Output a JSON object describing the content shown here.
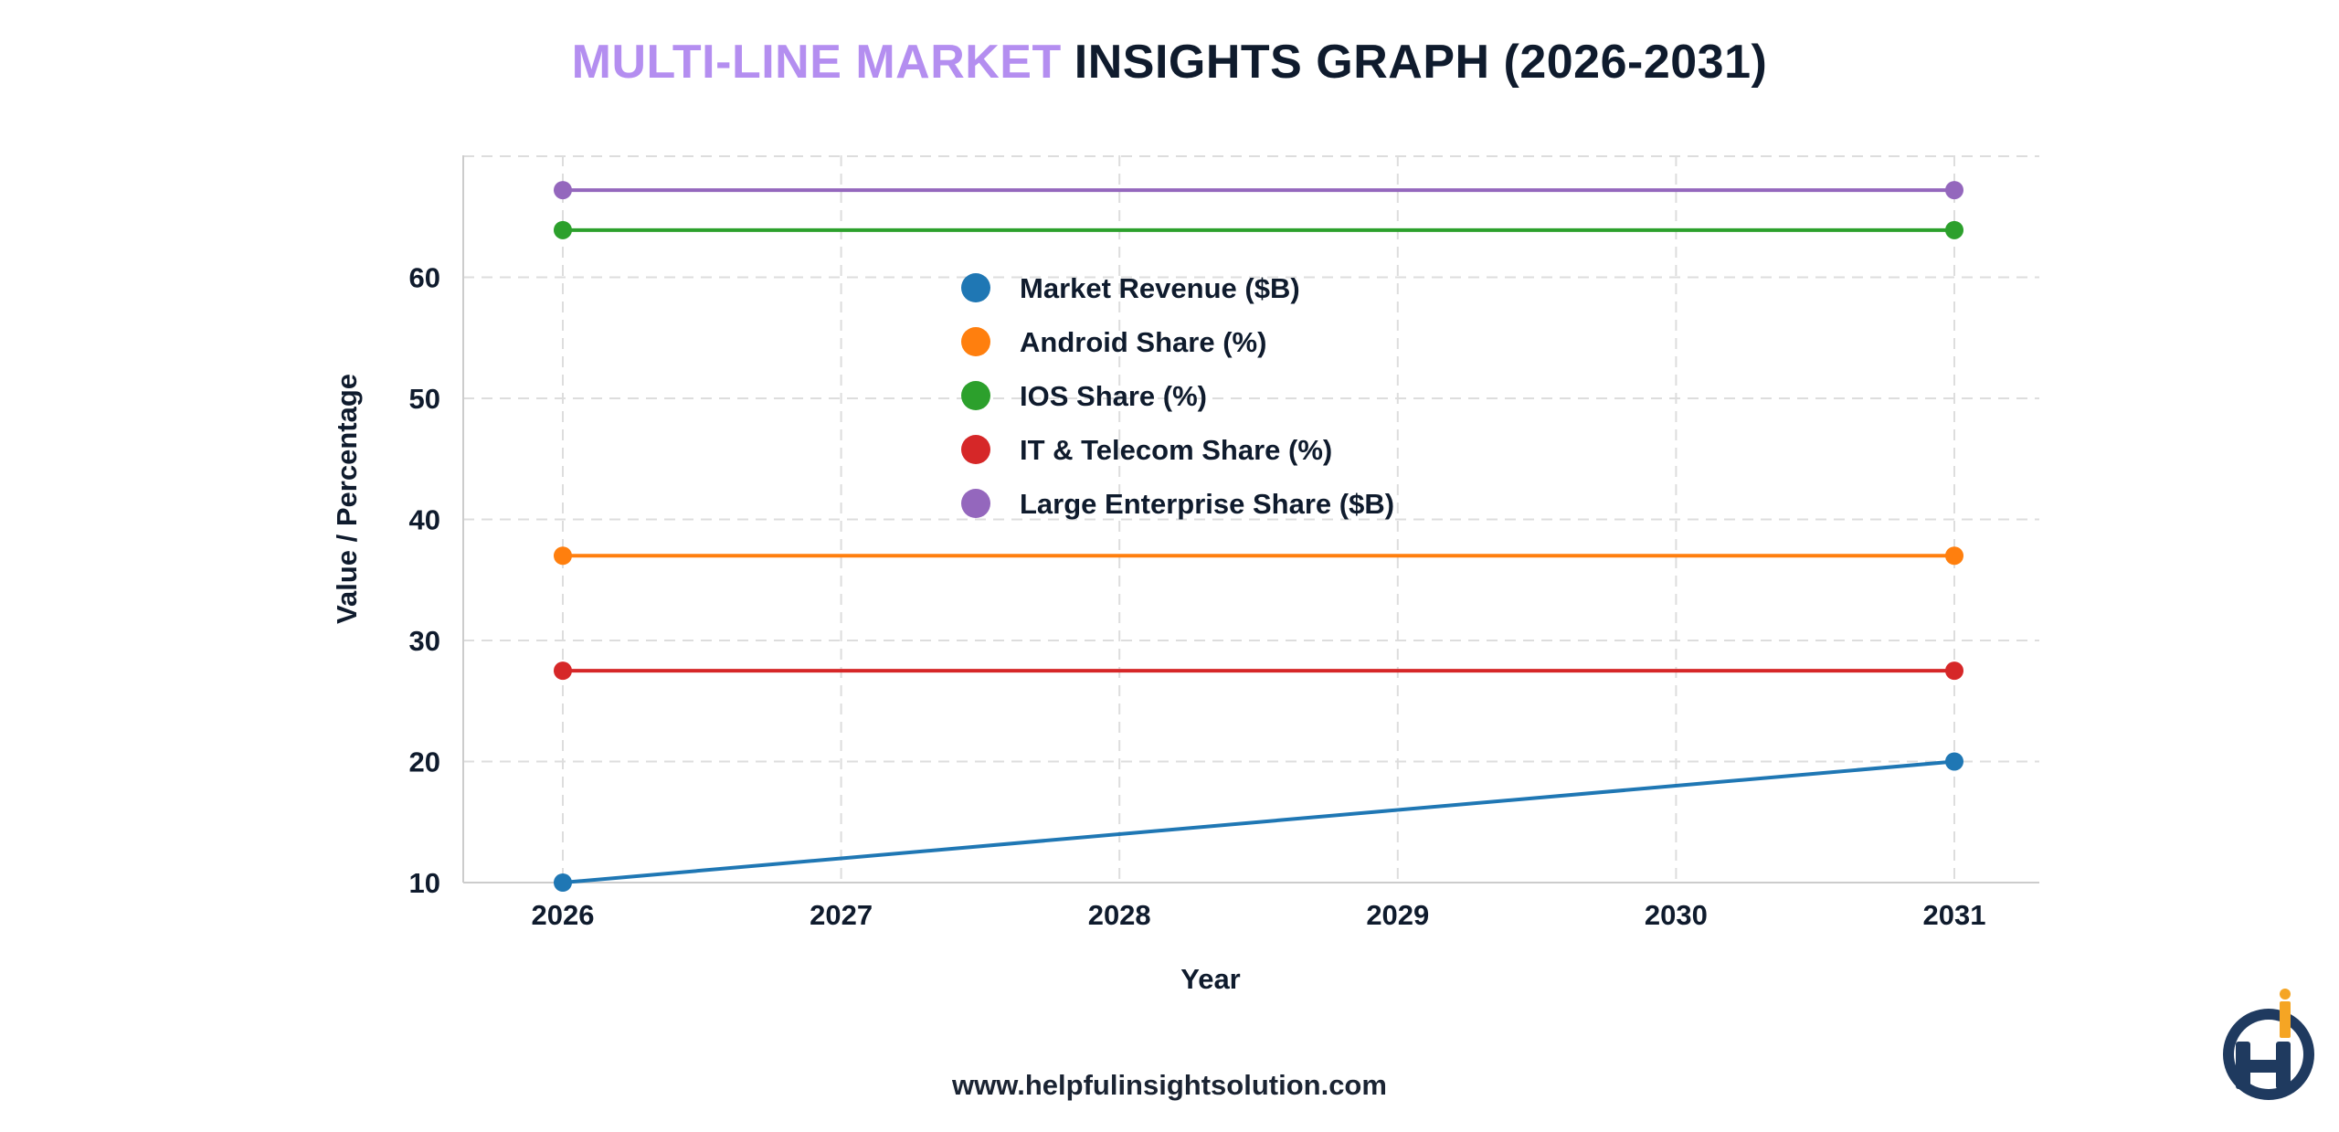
{
  "title": {
    "accent_part": "MULTI-LINE MARKET",
    "main_part": "INSIGHTS GRAPH (2026-2031)",
    "accent_color": "#b48ef0",
    "main_color": "#0f1b2d"
  },
  "footer": {
    "website": "www.helpfulinsightsolution.com"
  },
  "logo": {
    "icon": "hi-logo-icon",
    "colors": [
      "#1f3a5f",
      "#f5a524"
    ]
  },
  "chart_data": {
    "type": "line",
    "title": "MULTI-LINE MARKET INSIGHTS GRAPH (2026-2031)",
    "xlabel": "Year",
    "ylabel": "Value / Percentage",
    "x": [
      2026,
      2027,
      2028,
      2029,
      2030,
      2031
    ],
    "x_tick_labels": [
      "2026",
      "2027",
      "2028",
      "2029",
      "2030",
      "2031"
    ],
    "y_ticks": [
      10,
      20,
      30,
      40,
      50,
      60
    ],
    "ylim": [
      10,
      70
    ],
    "grid": true,
    "legend_position": "upper-center",
    "series": [
      {
        "name": "Market Revenue ($B)",
        "color": "#1f77b4",
        "x": [
          2026,
          2031
        ],
        "values": [
          10,
          20
        ]
      },
      {
        "name": "Android Share (%)",
        "color": "#ff7f0e",
        "x": [
          2026,
          2031
        ],
        "values": [
          37,
          37
        ]
      },
      {
        "name": "IOS Share (%)",
        "color": "#2ca02c",
        "x": [
          2026,
          2031
        ],
        "values": [
          63.9,
          63.9
        ]
      },
      {
        "name": "IT & Telecom Share (%)",
        "color": "#d62728",
        "x": [
          2026,
          2031
        ],
        "values": [
          27.5,
          27.5
        ]
      },
      {
        "name": "Large Enterprise Share ($B)",
        "color": "#9467bd",
        "x": [
          2026,
          2031
        ],
        "values": [
          67.2,
          67.2
        ]
      }
    ]
  }
}
